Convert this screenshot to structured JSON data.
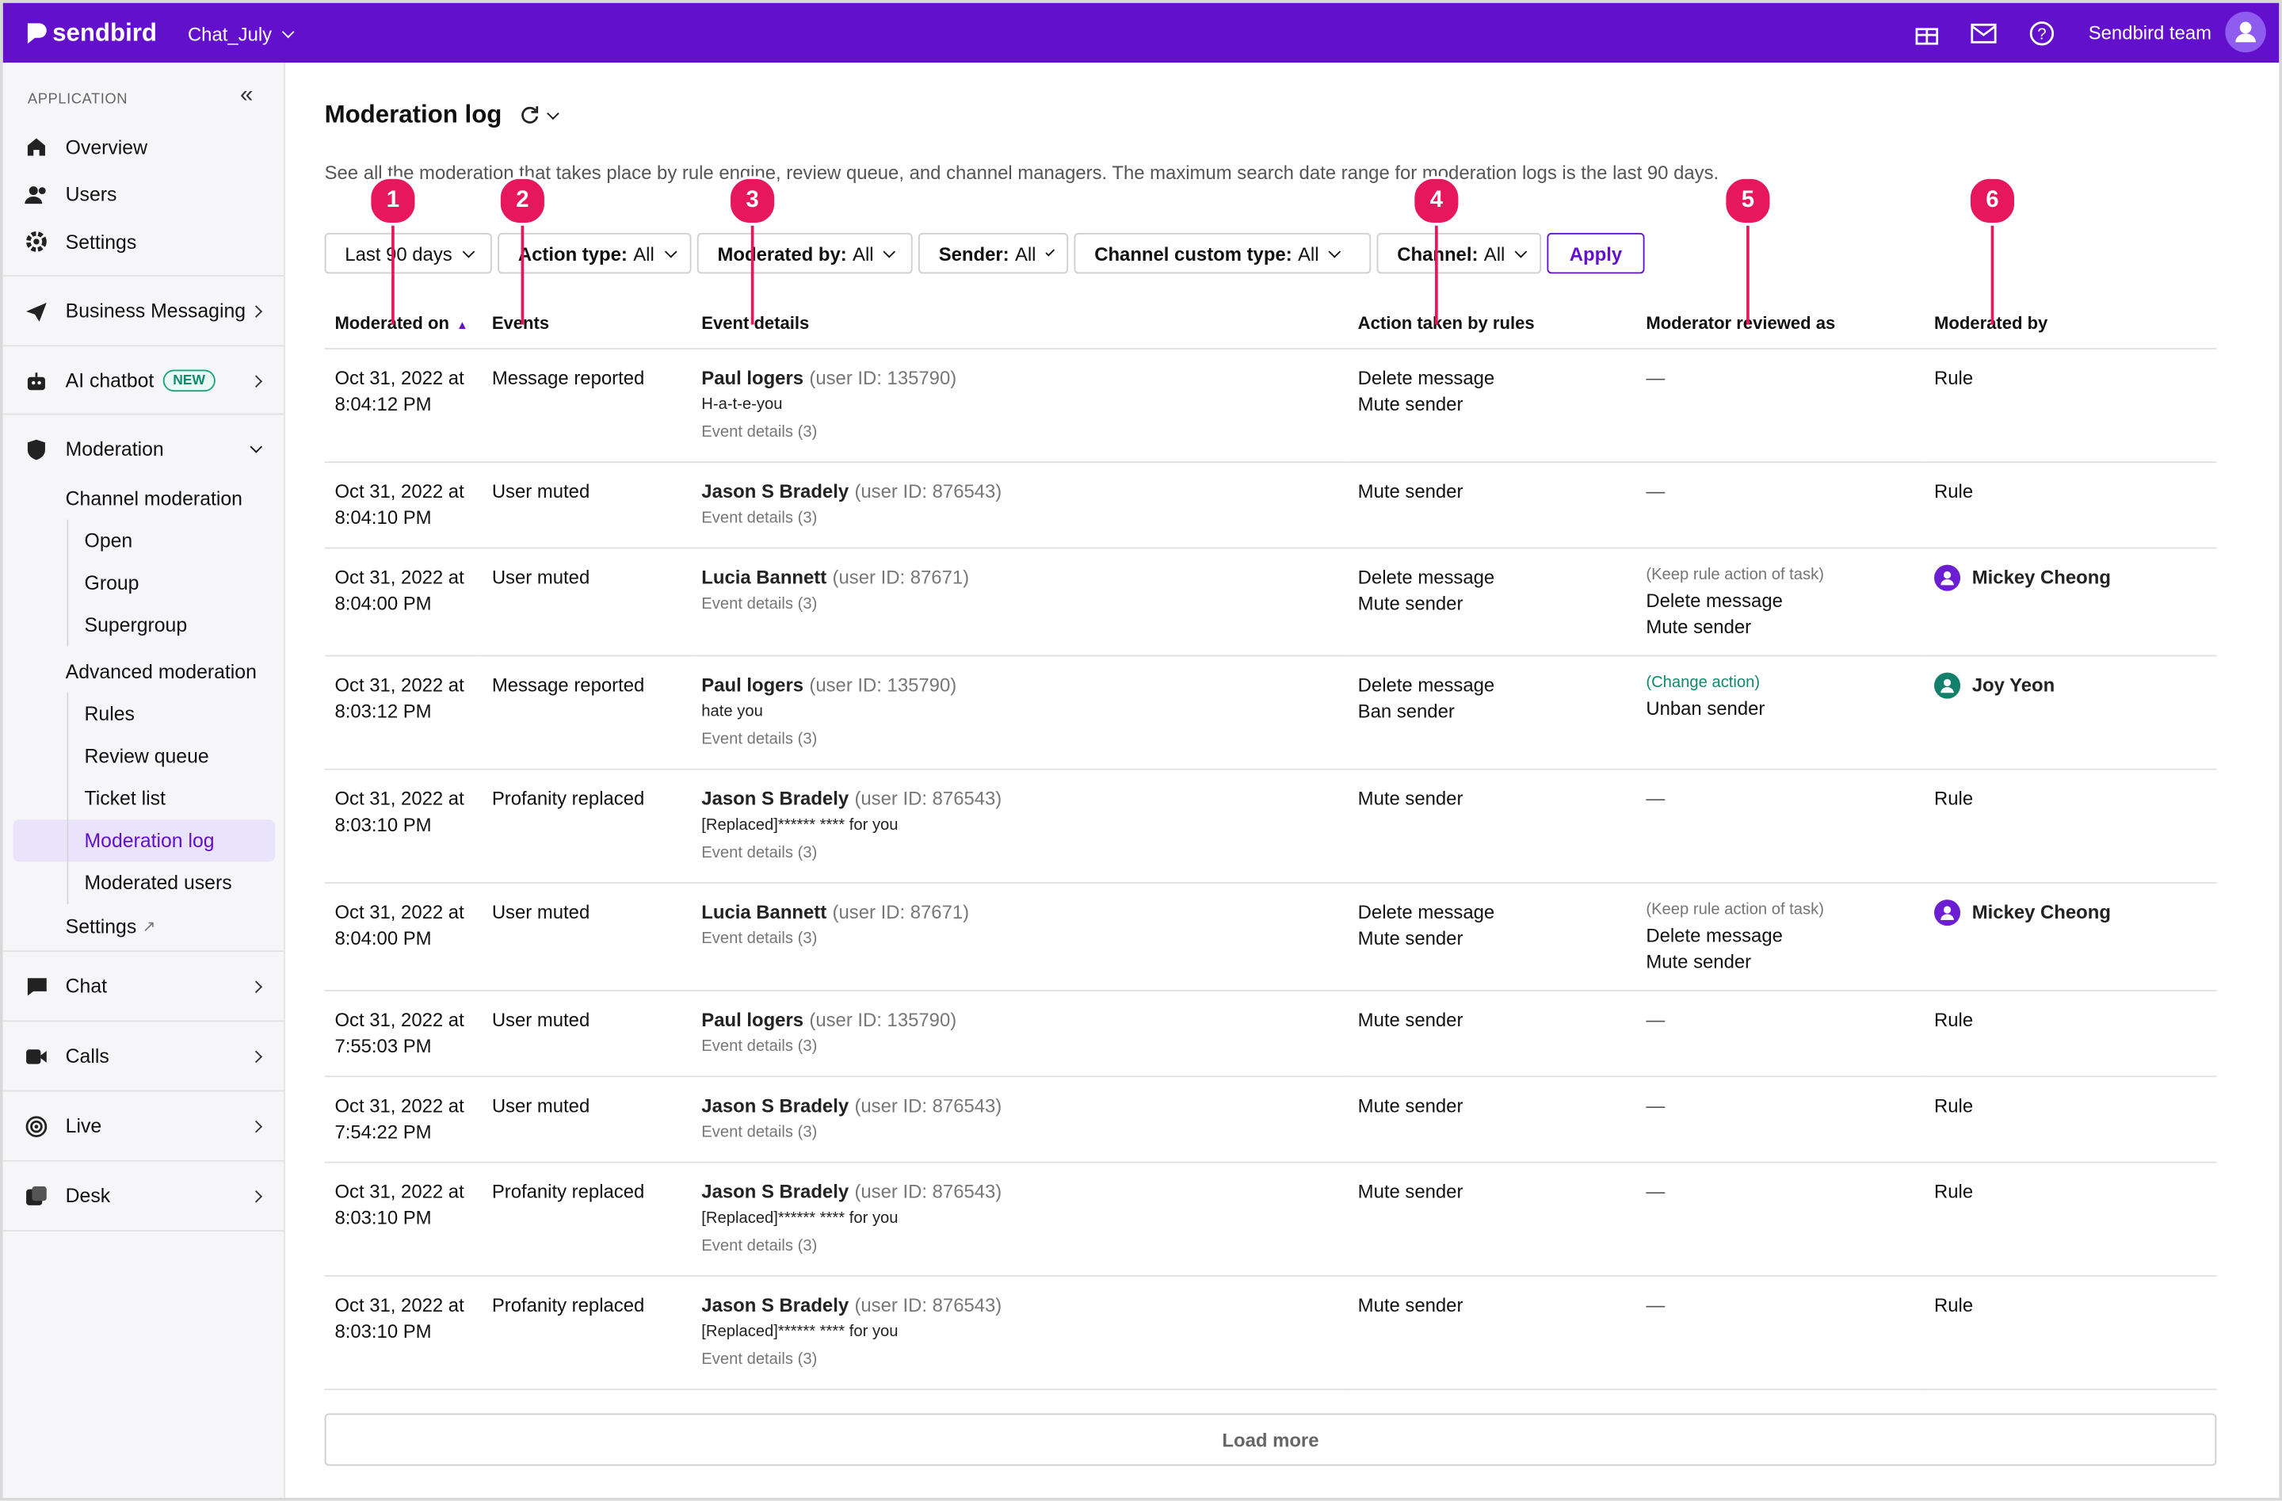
{
  "topbar": {
    "brand": "sendbird",
    "app": "Chat_July",
    "user": "Sendbird team"
  },
  "sidebar": {
    "section": "APPLICATION",
    "top": [
      "Overview",
      "Users",
      "Settings"
    ],
    "business": "Business Messaging",
    "ai": {
      "label": "AI chatbot",
      "badge": "NEW"
    },
    "moderation": {
      "label": "Moderation",
      "groups": [
        {
          "label": "Channel moderation",
          "items": [
            "Open",
            "Group",
            "Supergroup"
          ]
        },
        {
          "label": "Advanced moderation",
          "items": [
            "Rules",
            "Review queue",
            "Ticket list",
            "Moderation log",
            "Moderated users"
          ]
        }
      ],
      "settings": "Settings"
    },
    "products": [
      "Chat",
      "Calls",
      "Live",
      "Desk"
    ]
  },
  "page": {
    "title": "Moderation log",
    "description": "See all the moderation that takes place by rule engine, review queue, and channel managers. The maximum search date range for moderation logs is the last 90 days.",
    "date_filter": "Last 90 days",
    "filters": [
      {
        "label": "Action type:",
        "value": "All"
      },
      {
        "label": "Moderated by:",
        "value": "All"
      },
      {
        "label": "Sender:",
        "value": "All"
      },
      {
        "label": "Channel custom type:",
        "value": "All"
      },
      {
        "label": "Channel:",
        "value": "All"
      }
    ],
    "apply": "Apply",
    "load_more": "Load more"
  },
  "annotations": [
    "1",
    "2",
    "3",
    "4",
    "5",
    "6"
  ],
  "table": {
    "columns": [
      "Moderated on",
      "Events",
      "Event details",
      "Action taken by rules",
      "Moderator reviewed as",
      "Moderated by"
    ],
    "rows": [
      {
        "date": "Oct 31, 2022 at",
        "time": "8:04:12 PM",
        "event": "Message reported",
        "user": "Paul logers",
        "user_id": "(user ID: 135790)",
        "message": "H-a-t-e-you",
        "details": "Event details (3)",
        "actions": [
          "Delete message",
          "Mute sender"
        ],
        "review": "—",
        "moderated_by": "Rule"
      },
      {
        "date": "Oct 31, 2022 at",
        "time": "8:04:10 PM",
        "event": "User muted",
        "user": "Jason S Bradely",
        "user_id": "(user ID: 876543)",
        "details": "Event details (3)",
        "actions": [
          "Mute sender"
        ],
        "review": "—",
        "moderated_by": "Rule"
      },
      {
        "date": "Oct 31, 2022 at",
        "time": "8:04:00 PM",
        "event": "User muted",
        "user": "Lucia Bannett",
        "user_id": "(user ID: 87671)",
        "details": "Event details (3)",
        "actions": [
          "Delete message",
          "Mute sender"
        ],
        "review": {
          "note": "(Keep rule action of task)",
          "note_color": "#757575",
          "actions": [
            "Delete message",
            "Mute sender"
          ]
        },
        "moderated_by": {
          "name": "Mickey Cheong",
          "avatar_color": "#6b1fd1"
        }
      },
      {
        "date": "Oct 31, 2022 at",
        "time": "8:03:12 PM",
        "event": "Message reported",
        "user": "Paul logers",
        "user_id": "(user ID: 135790)",
        "message": "hate you",
        "details": "Event details (3)",
        "actions": [
          "Delete message",
          "Ban sender"
        ],
        "review": {
          "note": "(Change action)",
          "note_color": "#0f8a6c",
          "actions": [
            "Unban sender"
          ]
        },
        "moderated_by": {
          "name": "Joy Yeon",
          "avatar_color": "#12806a"
        }
      },
      {
        "date": "Oct 31, 2022 at",
        "time": "8:03:10 PM",
        "event": "Profanity replaced",
        "user": "Jason S Bradely",
        "user_id": "(user ID: 876543)",
        "message": "[Replaced]****** **** for you",
        "details": "Event details (3)",
        "actions": [
          "Mute sender"
        ],
        "review": "—",
        "moderated_by": "Rule"
      },
      {
        "date": "Oct 31, 2022 at",
        "time": "8:04:00 PM",
        "event": "User muted",
        "user": "Lucia Bannett",
        "user_id": "(user ID: 87671)",
        "details": "Event details (3)",
        "actions": [
          "Delete message",
          "Mute sender"
        ],
        "review": {
          "note": "(Keep rule action of task)",
          "note_color": "#757575",
          "actions": [
            "Delete message",
            "Mute sender"
          ]
        },
        "moderated_by": {
          "name": "Mickey Cheong",
          "avatar_color": "#6b1fd1"
        }
      },
      {
        "date": "Oct 31, 2022 at",
        "time": "7:55:03 PM",
        "event": "User muted",
        "user": "Paul logers",
        "user_id": "(user ID: 135790)",
        "details": "Event details (3)",
        "actions": [
          "Mute sender"
        ],
        "review": "—",
        "moderated_by": "Rule"
      },
      {
        "date": "Oct 31, 2022 at",
        "time": "7:54:22 PM",
        "event": "User muted",
        "user": "Jason S Bradely",
        "user_id": "(user ID: 876543)",
        "details": "Event details (3)",
        "actions": [
          "Mute sender"
        ],
        "review": "—",
        "moderated_by": "Rule"
      },
      {
        "date": "Oct 31, 2022 at",
        "time": "8:03:10 PM",
        "event": "Profanity replaced",
        "user": "Jason S Bradely",
        "user_id": "(user ID: 876543)",
        "message": "[Replaced]****** **** for you",
        "details": "Event details (3)",
        "actions": [
          "Mute sender"
        ],
        "review": "—",
        "moderated_by": "Rule"
      },
      {
        "date": "Oct 31, 2022 at",
        "time": "8:03:10 PM",
        "event": "Profanity replaced",
        "user": "Jason S Bradely",
        "user_id": "(user ID: 876543)",
        "message": "[Replaced]****** **** for you",
        "details": "Event details (3)",
        "actions": [
          "Mute sender"
        ],
        "review": "—",
        "moderated_by": "Rule"
      }
    ]
  }
}
